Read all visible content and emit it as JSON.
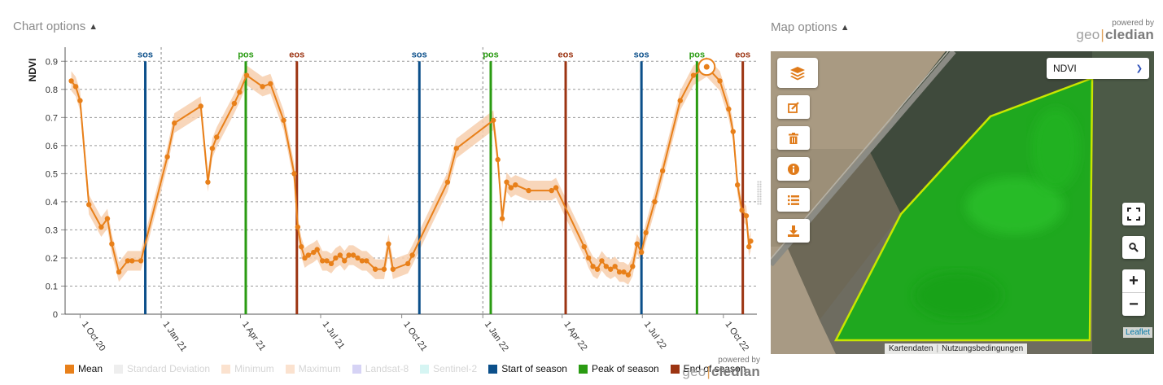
{
  "chart_panel": {
    "options_label": "Chart options",
    "powered_by": "powered by",
    "brand_geo": "geo",
    "brand_cledian": "cledian"
  },
  "map_panel": {
    "options_label": "Map options",
    "powered_by": "powered by",
    "brand_geo": "geo",
    "brand_cledian": "cledian",
    "layer_select": "NDVI",
    "tools": [
      "layers-icon",
      "edit-icon",
      "trash-icon",
      "info-icon",
      "list-icon",
      "download-icon"
    ],
    "zoom_in": "+",
    "zoom_out": "−",
    "attribution": [
      "Kartendaten",
      "Nutzungsbedingungen"
    ],
    "leaflet": "Leaflet",
    "colors": {
      "field": "#21b321",
      "outline": "#c8e600"
    }
  },
  "legend": [
    {
      "label": "Mean",
      "color": "#e8801a",
      "active": true
    },
    {
      "label": "Standard Deviation",
      "color": "#eeeeee",
      "active": false
    },
    {
      "label": "Minimum",
      "color": "#fbe2cf",
      "active": false
    },
    {
      "label": "Maximum",
      "color": "#fbe2cf",
      "active": false
    },
    {
      "label": "Landsat-8",
      "color": "#d6d3f5",
      "active": false
    },
    {
      "label": "Sentinel-2",
      "color": "#d6f5f3",
      "active": false
    },
    {
      "label": "Start of season",
      "color": "#0b4f8a",
      "active": true
    },
    {
      "label": "Peak of season",
      "color": "#2a9b12",
      "active": true
    },
    {
      "label": "End of season",
      "color": "#9c3412",
      "active": true
    }
  ],
  "chart_data": {
    "type": "line",
    "ylabel": "NDVI",
    "ylim": [
      0,
      0.95
    ],
    "yticks": [
      0,
      0.1,
      0.2,
      0.3,
      0.4,
      0.5,
      0.6,
      0.7,
      0.8,
      0.9
    ],
    "xticks": [
      {
        "date": "2020-10-01",
        "label": "1 Oct 20"
      },
      {
        "date": "2021-01-01",
        "label": "1 Jan 21"
      },
      {
        "date": "2021-04-01",
        "label": "1 Apr 21"
      },
      {
        "date": "2021-07-01",
        "label": "1 Jul 21"
      },
      {
        "date": "2021-10-01",
        "label": "1 Oct 21"
      },
      {
        "date": "2022-01-01",
        "label": "1 Jan 22"
      },
      {
        "date": "2022-04-01",
        "label": "1 Apr 22"
      },
      {
        "date": "2022-07-01",
        "label": "1 Jul 22"
      },
      {
        "date": "2022-10-01",
        "label": "1 Oct 22"
      }
    ],
    "year_dividers": [
      "2021-01-01",
      "2022-01-01"
    ],
    "mean_color": "#e8801a",
    "band_color": "#f7cfae",
    "series": [
      {
        "name": "Mean",
        "points": [
          [
            "2020-09-21",
            0.83
          ],
          [
            "2020-09-26",
            0.81
          ],
          [
            "2020-10-01",
            0.76
          ],
          [
            "2020-10-11",
            0.39
          ],
          [
            "2020-10-25",
            0.31
          ],
          [
            "2020-11-01",
            0.34
          ],
          [
            "2020-11-06",
            0.25
          ],
          [
            "2020-11-14",
            0.15
          ],
          [
            "2020-11-24",
            0.19
          ],
          [
            "2020-11-29",
            0.19
          ],
          [
            "2020-12-09",
            0.19
          ],
          [
            "2021-01-08",
            0.56
          ],
          [
            "2021-01-16",
            0.68
          ],
          [
            "2021-02-15",
            0.74
          ],
          [
            "2021-02-23",
            0.47
          ],
          [
            "2021-02-28",
            0.59
          ],
          [
            "2021-03-05",
            0.63
          ],
          [
            "2021-03-25",
            0.75
          ],
          [
            "2021-03-31",
            0.79
          ],
          [
            "2021-04-08",
            0.85
          ],
          [
            "2021-04-26",
            0.81
          ],
          [
            "2021-05-05",
            0.82
          ],
          [
            "2021-05-20",
            0.69
          ],
          [
            "2021-06-01",
            0.5
          ],
          [
            "2021-06-05",
            0.31
          ],
          [
            "2021-06-09",
            0.24
          ],
          [
            "2021-06-13",
            0.2
          ],
          [
            "2021-06-17",
            0.21
          ],
          [
            "2021-06-23",
            0.22
          ],
          [
            "2021-06-27",
            0.23
          ],
          [
            "2021-07-03",
            0.19
          ],
          [
            "2021-07-08",
            0.19
          ],
          [
            "2021-07-13",
            0.18
          ],
          [
            "2021-07-18",
            0.2
          ],
          [
            "2021-07-23",
            0.21
          ],
          [
            "2021-07-28",
            0.19
          ],
          [
            "2021-08-02",
            0.21
          ],
          [
            "2021-08-07",
            0.21
          ],
          [
            "2021-08-12",
            0.2
          ],
          [
            "2021-08-17",
            0.19
          ],
          [
            "2021-08-22",
            0.19
          ],
          [
            "2021-09-01",
            0.16
          ],
          [
            "2021-09-11",
            0.16
          ],
          [
            "2021-09-16",
            0.25
          ],
          [
            "2021-09-21",
            0.16
          ],
          [
            "2021-10-08",
            0.18
          ],
          [
            "2021-10-13",
            0.21
          ],
          [
            "2021-11-22",
            0.47
          ],
          [
            "2021-12-02",
            0.59
          ],
          [
            "2022-01-13",
            0.69
          ],
          [
            "2022-01-18",
            0.55
          ],
          [
            "2022-01-23",
            0.34
          ],
          [
            "2022-01-28",
            0.47
          ],
          [
            "2022-02-02",
            0.45
          ],
          [
            "2022-02-07",
            0.46
          ],
          [
            "2022-02-22",
            0.44
          ],
          [
            "2022-03-20",
            0.44
          ],
          [
            "2022-03-25",
            0.45
          ],
          [
            "2022-04-26",
            0.24
          ],
          [
            "2022-05-01",
            0.2
          ],
          [
            "2022-05-06",
            0.17
          ],
          [
            "2022-05-11",
            0.16
          ],
          [
            "2022-05-16",
            0.19
          ],
          [
            "2022-05-21",
            0.17
          ],
          [
            "2022-05-26",
            0.16
          ],
          [
            "2022-05-31",
            0.17
          ],
          [
            "2022-06-05",
            0.15
          ],
          [
            "2022-06-10",
            0.15
          ],
          [
            "2022-06-15",
            0.14
          ],
          [
            "2022-06-20",
            0.17
          ],
          [
            "2022-06-25",
            0.25
          ],
          [
            "2022-06-30",
            0.22
          ],
          [
            "2022-07-05",
            0.29
          ],
          [
            "2022-07-15",
            0.4
          ],
          [
            "2022-07-24",
            0.51
          ],
          [
            "2022-08-13",
            0.76
          ],
          [
            "2022-08-28",
            0.85
          ],
          [
            "2022-09-07",
            0.87
          ],
          [
            "2022-09-12",
            0.88
          ],
          [
            "2022-09-27",
            0.83
          ],
          [
            "2022-10-07",
            0.73
          ],
          [
            "2022-10-12",
            0.65
          ],
          [
            "2022-10-17",
            0.46
          ],
          [
            "2022-10-22",
            0.37
          ],
          [
            "2022-10-27",
            0.35
          ],
          [
            "2022-10-30",
            0.24
          ],
          [
            "2022-11-01",
            0.26
          ]
        ]
      }
    ],
    "season_markers": [
      {
        "type": "sos",
        "date": "2020-12-14",
        "color": "#0b4f8a"
      },
      {
        "type": "pos",
        "date": "2021-04-07",
        "color": "#2a9b12"
      },
      {
        "type": "eos",
        "date": "2021-06-04",
        "color": "#9c3412"
      },
      {
        "type": "sos",
        "date": "2021-10-21",
        "color": "#0b4f8a"
      },
      {
        "type": "pos",
        "date": "2022-01-10",
        "color": "#2a9b12"
      },
      {
        "type": "eos",
        "date": "2022-04-05",
        "color": "#9c3412"
      },
      {
        "type": "sos",
        "date": "2022-06-30",
        "color": "#0b4f8a"
      },
      {
        "type": "pos",
        "date": "2022-09-01",
        "color": "#2a9b12"
      },
      {
        "type": "eos",
        "date": "2022-10-23",
        "color": "#9c3412"
      }
    ],
    "highlight_point": [
      "2022-09-12",
      0.88
    ]
  }
}
